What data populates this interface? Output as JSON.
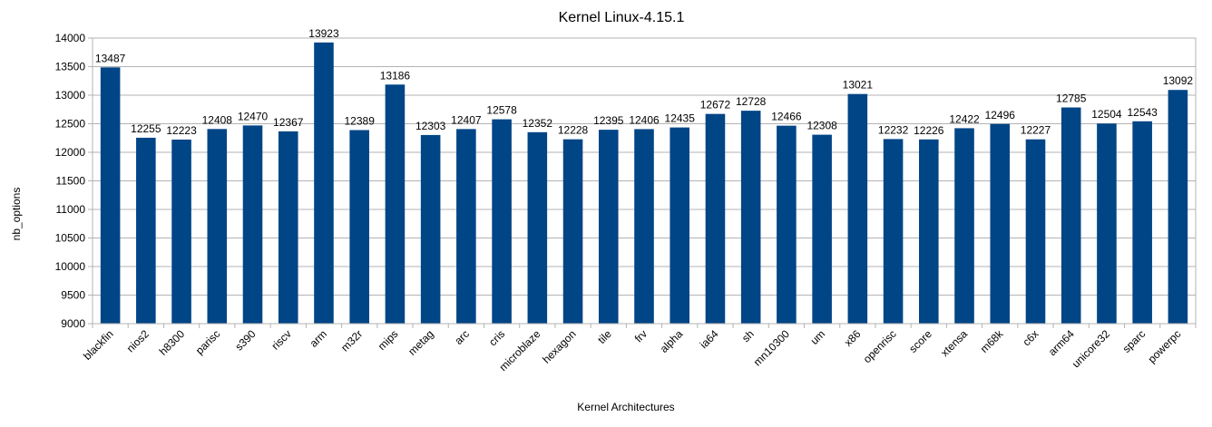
{
  "chart_data": {
    "type": "bar",
    "title": "Kernel Linux-4.15.1",
    "xlabel": "Kernel Architectures",
    "ylabel": "nb_options",
    "ylim": [
      9000,
      14000
    ],
    "ytick_step": 500,
    "yticks": [
      "9000",
      "9500",
      "10000",
      "10500",
      "11000",
      "11500",
      "12000",
      "12500",
      "13000",
      "13500",
      "14000"
    ],
    "grid": true,
    "bar_color": "#004586",
    "grid_color": "#b3b3b3",
    "categories": [
      "blackfin",
      "nios2",
      "h8300",
      "parisc",
      "s390",
      "riscv",
      "arm",
      "m32r",
      "mips",
      "metag",
      "arc",
      "cris",
      "microblaze",
      "hexagon",
      "tile",
      "frv",
      "alpha",
      "ia64",
      "sh",
      "mn10300",
      "um",
      "x86",
      "openrisc",
      "score",
      "xtensa",
      "m68k",
      "c6x",
      "arm64",
      "unicore32",
      "sparc",
      "powerpc"
    ],
    "values": [
      13487,
      12255,
      12223,
      12408,
      12470,
      12367,
      13923,
      12389,
      13186,
      12303,
      12407,
      12578,
      12352,
      12228,
      12395,
      12406,
      12435,
      12672,
      12728,
      12466,
      12308,
      13021,
      12232,
      12226,
      12422,
      12496,
      12227,
      12785,
      12504,
      12543,
      13092
    ],
    "data_labels": [
      "13487",
      "12255",
      "12223",
      "12408",
      "12470",
      "12367",
      "13923",
      "12389",
      "13186",
      "12303",
      "12407",
      "12578",
      "12352",
      "12228",
      "12395",
      "12406",
      "12435",
      "12672",
      "12728",
      "12466",
      "12308",
      "13021",
      "12232",
      "12226",
      "12422",
      "12496",
      "12227",
      "12785",
      "12504",
      "12543",
      "13092"
    ]
  }
}
